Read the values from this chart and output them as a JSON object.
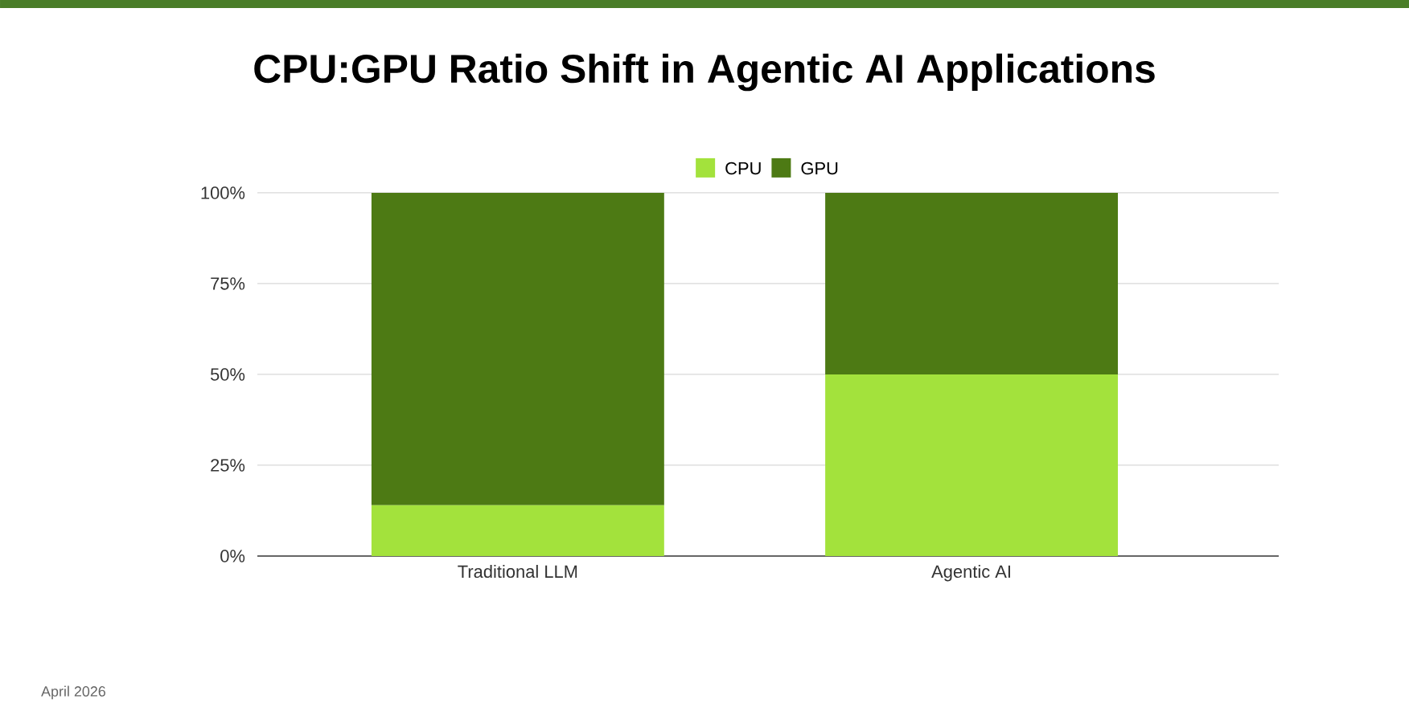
{
  "chart_data": {
    "type": "bar",
    "title": "CPU:GPU Ratio Shift in Agentic AI Applications",
    "categories": [
      "Traditional LLM",
      "Agentic AI"
    ],
    "stacked": true,
    "series": [
      {
        "name": "CPU",
        "color": "#a3e23c",
        "values": [
          14,
          50
        ]
      },
      {
        "name": "GPU",
        "color": "#4d7a14",
        "values": [
          86,
          50
        ]
      }
    ],
    "ylim": [
      0,
      100
    ],
    "yticks": [
      {
        "value": 0,
        "label": "0%"
      },
      {
        "value": 25,
        "label": "25%"
      },
      {
        "value": 50,
        "label": "50%"
      },
      {
        "value": 75,
        "label": "75%"
      },
      {
        "value": 100,
        "label": "100%"
      }
    ],
    "grid": "y",
    "legend": "top",
    "annotations": [
      "April 2026"
    ]
  }
}
